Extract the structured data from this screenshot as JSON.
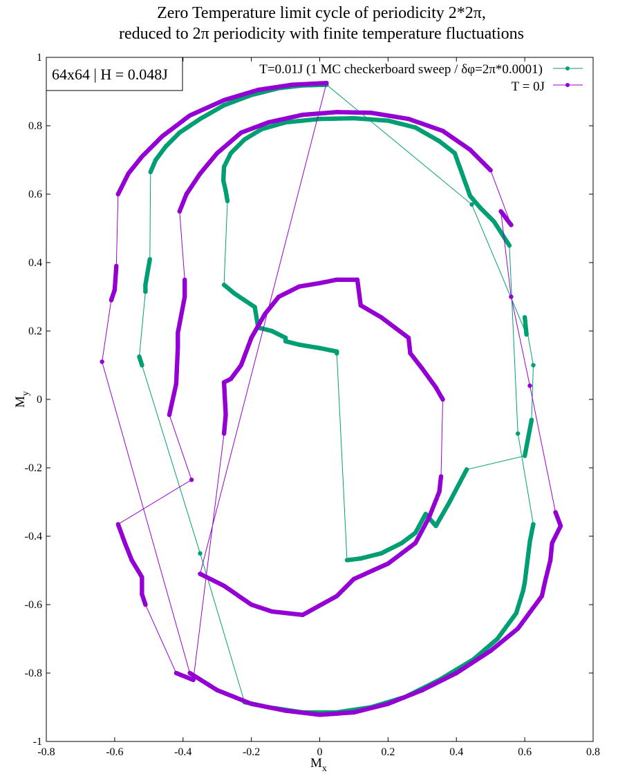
{
  "chart_data": {
    "type": "line",
    "title_lines": [
      "Zero Temperature limit cycle of periodicity 2*2π,",
      "reduced to 2π periodicity with finite temperature fluctuations"
    ],
    "xlabel_main": "M",
    "xlabel_sub": "x",
    "ylabel_main": "M",
    "ylabel_sub": "y",
    "xlim": [
      -0.8,
      0.8
    ],
    "ylim": [
      -1,
      1
    ],
    "xticks": [
      -0.8,
      -0.6,
      -0.4,
      -0.2,
      0,
      0.2,
      0.4,
      0.6,
      0.8
    ],
    "xtick_labels": [
      "-0.8",
      "-0.6",
      "-0.4",
      "-0.2",
      "0",
      "0.2",
      "0.4",
      "0.6",
      "0.8"
    ],
    "yticks": [
      -1,
      -0.8,
      -0.6,
      -0.4,
      -0.2,
      0,
      0.2,
      0.4,
      0.6,
      0.8,
      1
    ],
    "ytick_labels": [
      "-1",
      "-0.8",
      "-0.6",
      "-0.4",
      "-0.2",
      "0",
      "0.2",
      "0.4",
      "0.6",
      "0.8",
      "1"
    ],
    "grid": false,
    "legend_position": "top-right",
    "info_box": "64x64 | H = 0.048J",
    "series": [
      {
        "name": "T=0.01J (1 MC checkerboard sweep / δφ=2π*0.0001)",
        "color": "#009e73",
        "points": [
          [
            0.02,
            0.92
          ],
          [
            -0.05,
            0.918
          ],
          [
            -0.12,
            0.91
          ],
          [
            -0.2,
            0.89
          ],
          [
            -0.28,
            0.86
          ],
          [
            -0.35,
            0.82
          ],
          [
            -0.41,
            0.78
          ],
          [
            -0.45,
            0.74
          ],
          [
            -0.48,
            0.7
          ],
          [
            -0.495,
            0.665
          ],
          [
            -0.497,
            0.41
          ],
          [
            -0.51,
            0.335
          ],
          [
            -0.51,
            0.315
          ],
          [
            -0.528,
            0.125
          ],
          [
            -0.52,
            0.1
          ],
          [
            -0.35,
            -0.45
          ],
          [
            -0.22,
            -0.885
          ],
          [
            -0.15,
            -0.9
          ],
          [
            -0.05,
            -0.915
          ],
          [
            0.05,
            -0.915
          ],
          [
            0.15,
            -0.9
          ],
          [
            0.25,
            -0.87
          ],
          [
            0.35,
            -0.82
          ],
          [
            0.45,
            -0.76
          ],
          [
            0.52,
            -0.7
          ],
          [
            0.575,
            -0.625
          ],
          [
            0.595,
            -0.56
          ],
          [
            0.6,
            -0.535
          ],
          [
            0.615,
            -0.415
          ],
          [
            0.625,
            -0.365
          ],
          [
            0.58,
            -0.1
          ],
          [
            0.555,
            0.45
          ],
          [
            0.51,
            0.52
          ],
          [
            0.47,
            0.56
          ],
          [
            0.44,
            0.595
          ],
          [
            0.395,
            0.72
          ],
          [
            0.35,
            0.755
          ],
          [
            0.28,
            0.795
          ],
          [
            0.2,
            0.815
          ],
          [
            0.1,
            0.822
          ],
          [
            0.0,
            0.82
          ],
          [
            -0.1,
            0.81
          ],
          [
            -0.17,
            0.79
          ],
          [
            -0.22,
            0.76
          ],
          [
            -0.26,
            0.72
          ],
          [
            -0.28,
            0.68
          ],
          [
            -0.282,
            0.64
          ],
          [
            -0.275,
            0.61
          ],
          [
            -0.27,
            0.58
          ],
          [
            -0.28,
            0.335
          ],
          [
            -0.25,
            0.31
          ],
          [
            -0.22,
            0.29
          ],
          [
            -0.19,
            0.27
          ],
          [
            -0.18,
            0.21
          ],
          [
            -0.14,
            0.2
          ],
          [
            -0.1,
            0.18
          ],
          [
            -0.1,
            0.17
          ],
          [
            -0.06,
            0.16
          ],
          [
            0.0,
            0.15
          ],
          [
            0.05,
            0.14
          ],
          [
            0.05,
            0.135
          ],
          [
            0.08,
            -0.47
          ],
          [
            0.12,
            -0.465
          ],
          [
            0.18,
            -0.45
          ],
          [
            0.24,
            -0.42
          ],
          [
            0.28,
            -0.39
          ],
          [
            0.31,
            -0.335
          ],
          [
            0.34,
            -0.37
          ],
          [
            0.38,
            -0.3
          ],
          [
            0.43,
            -0.205
          ],
          [
            0.6,
            -0.165
          ],
          [
            0.62,
            -0.06
          ],
          [
            0.625,
            0.1
          ],
          [
            0.6,
            0.24
          ],
          [
            0.605,
            0.19
          ],
          [
            0.445,
            0.57
          ],
          [
            0.02,
            0.92
          ]
        ]
      },
      {
        "name": "T = 0J",
        "color": "#9400d3",
        "points": [
          [
            0.02,
            0.925
          ],
          [
            -0.08,
            0.92
          ],
          [
            -0.18,
            0.905
          ],
          [
            -0.28,
            0.875
          ],
          [
            -0.38,
            0.83
          ],
          [
            -0.46,
            0.77
          ],
          [
            -0.52,
            0.71
          ],
          [
            -0.56,
            0.66
          ],
          [
            -0.59,
            0.6
          ],
          [
            -0.595,
            0.39
          ],
          [
            -0.6,
            0.32
          ],
          [
            -0.61,
            0.29
          ],
          [
            -0.637,
            0.11
          ],
          [
            -0.38,
            -0.8
          ],
          [
            -0.3,
            -0.85
          ],
          [
            -0.2,
            -0.89
          ],
          [
            -0.1,
            -0.91
          ],
          [
            0.0,
            -0.922
          ],
          [
            0.1,
            -0.915
          ],
          [
            0.2,
            -0.89
          ],
          [
            0.3,
            -0.85
          ],
          [
            0.4,
            -0.8
          ],
          [
            0.5,
            -0.735
          ],
          [
            0.58,
            -0.67
          ],
          [
            0.65,
            -0.575
          ],
          [
            0.66,
            -0.53
          ],
          [
            0.675,
            -0.47
          ],
          [
            0.68,
            -0.42
          ],
          [
            0.705,
            -0.37
          ],
          [
            0.69,
            -0.33
          ],
          [
            0.615,
            0.04
          ],
          [
            0.56,
            0.3
          ],
          [
            0.53,
            0.55
          ],
          [
            0.56,
            0.51
          ],
          [
            0.5,
            0.67
          ],
          [
            0.44,
            0.73
          ],
          [
            0.36,
            0.785
          ],
          [
            0.26,
            0.82
          ],
          [
            0.15,
            0.838
          ],
          [
            0.05,
            0.84
          ],
          [
            -0.05,
            0.832
          ],
          [
            -0.15,
            0.81
          ],
          [
            -0.23,
            0.78
          ],
          [
            -0.3,
            0.72
          ],
          [
            -0.35,
            0.66
          ],
          [
            -0.39,
            0.6
          ],
          [
            -0.41,
            0.55
          ],
          [
            -0.395,
            0.35
          ],
          [
            -0.395,
            0.3
          ],
          [
            -0.415,
            0.195
          ],
          [
            -0.415,
            0.155
          ],
          [
            -0.42,
            0.045
          ],
          [
            -0.44,
            -0.045
          ],
          [
            -0.375,
            -0.235
          ],
          [
            -0.59,
            -0.365
          ],
          [
            -0.57,
            -0.42
          ],
          [
            -0.55,
            -0.47
          ],
          [
            -0.52,
            -0.52
          ],
          [
            -0.52,
            -0.57
          ],
          [
            -0.51,
            -0.6
          ],
          [
            -0.42,
            -0.8
          ],
          [
            -0.37,
            -0.82
          ],
          [
            -0.28,
            -0.1
          ],
          [
            -0.275,
            -0.045
          ],
          [
            -0.28,
            0.05
          ],
          [
            -0.26,
            0.06
          ],
          [
            -0.23,
            0.1
          ],
          [
            -0.2,
            0.18
          ],
          [
            -0.16,
            0.25
          ],
          [
            -0.12,
            0.3
          ],
          [
            -0.06,
            0.33
          ],
          [
            0.0,
            0.34
          ],
          [
            0.05,
            0.35
          ],
          [
            0.11,
            0.35
          ],
          [
            0.12,
            0.275
          ],
          [
            0.18,
            0.24
          ],
          [
            0.22,
            0.21
          ],
          [
            0.26,
            0.18
          ],
          [
            0.265,
            0.135
          ],
          [
            0.3,
            0.09
          ],
          [
            0.34,
            0.035
          ],
          [
            0.36,
            0.0
          ],
          [
            0.355,
            -0.225
          ],
          [
            0.35,
            -0.27
          ],
          [
            0.32,
            -0.345
          ],
          [
            0.28,
            -0.42
          ],
          [
            0.2,
            -0.48
          ],
          [
            0.1,
            -0.525
          ],
          [
            0.05,
            -0.575
          ],
          [
            -0.05,
            -0.63
          ],
          [
            -0.14,
            -0.62
          ],
          [
            -0.2,
            -0.6
          ],
          [
            -0.28,
            -0.545
          ],
          [
            -0.35,
            -0.51
          ],
          [
            0.02,
            0.925
          ]
        ]
      }
    ]
  }
}
